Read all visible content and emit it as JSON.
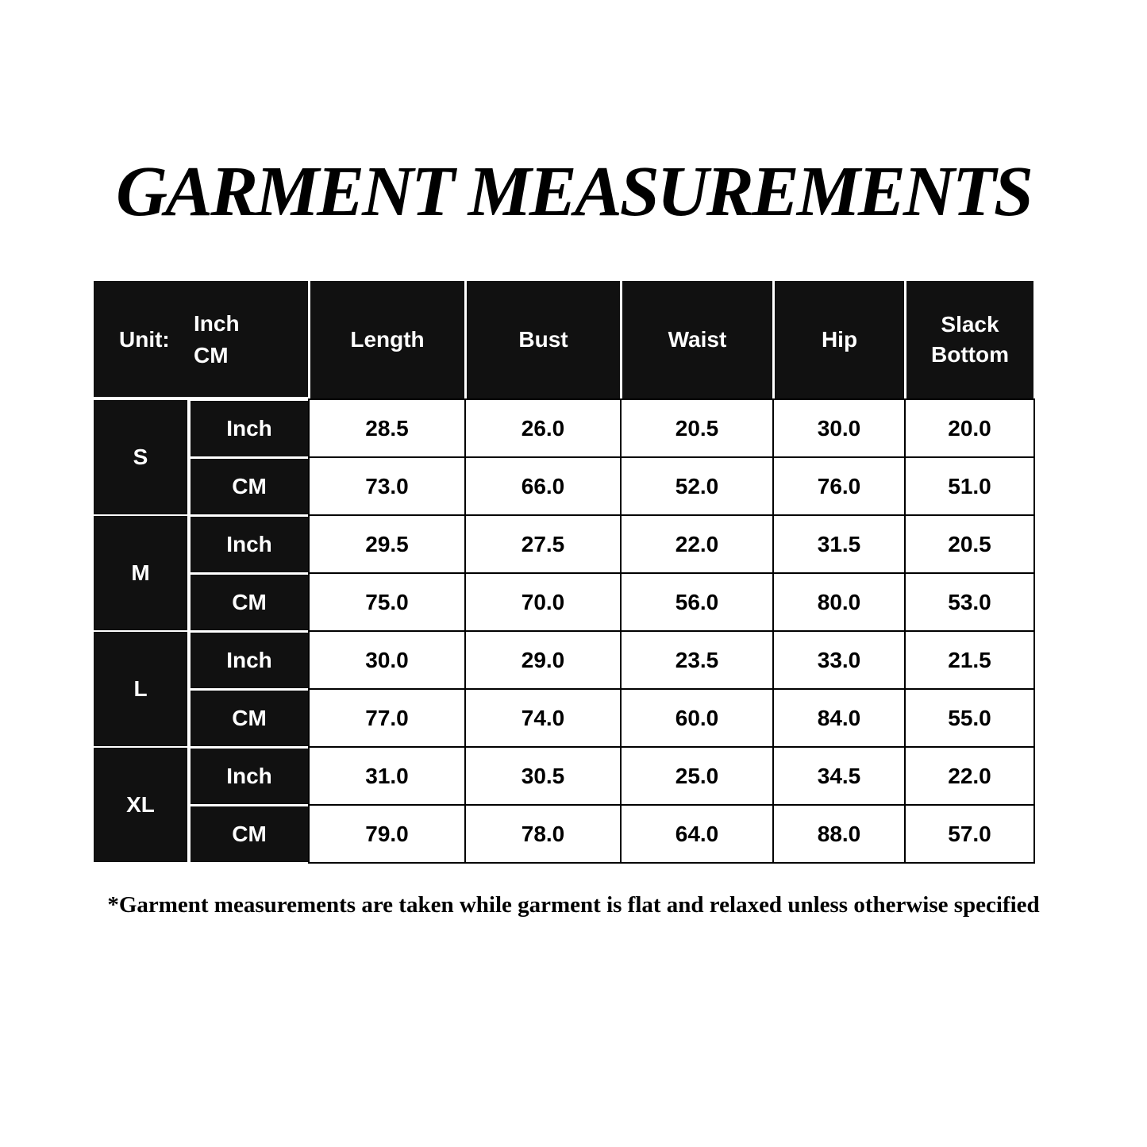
{
  "header": {
    "title": "GARMENT MEASUREMENTS"
  },
  "table": {
    "unit_label": "Unit:",
    "unit_options": [
      "Inch",
      "CM"
    ],
    "columns": [
      "Length",
      "Bust",
      "Waist",
      "Hip",
      "Slack Bottom"
    ],
    "sizes": [
      {
        "size": "S",
        "rows": [
          {
            "unit": "Inch",
            "values": [
              "28.5",
              "26.0",
              "20.5",
              "30.0",
              "20.0"
            ]
          },
          {
            "unit": "CM",
            "values": [
              "73.0",
              "66.0",
              "52.0",
              "76.0",
              "51.0"
            ]
          }
        ]
      },
      {
        "size": "M",
        "rows": [
          {
            "unit": "Inch",
            "values": [
              "29.5",
              "27.5",
              "22.0",
              "31.5",
              "20.5"
            ]
          },
          {
            "unit": "CM",
            "values": [
              "75.0",
              "70.0",
              "56.0",
              "80.0",
              "53.0"
            ]
          }
        ]
      },
      {
        "size": "L",
        "rows": [
          {
            "unit": "Inch",
            "values": [
              "30.0",
              "29.0",
              "23.5",
              "33.0",
              "21.5"
            ]
          },
          {
            "unit": "CM",
            "values": [
              "77.0",
              "74.0",
              "60.0",
              "84.0",
              "55.0"
            ]
          }
        ]
      },
      {
        "size": "XL",
        "rows": [
          {
            "unit": "Inch",
            "values": [
              "31.0",
              "30.5",
              "25.0",
              "34.5",
              "22.0"
            ]
          },
          {
            "unit": "CM",
            "values": [
              "79.0",
              "78.0",
              "64.0",
              "88.0",
              "57.0"
            ]
          }
        ]
      }
    ]
  },
  "footnote": "*Garment measurements are taken while garment is flat and relaxed unless otherwise specified"
}
